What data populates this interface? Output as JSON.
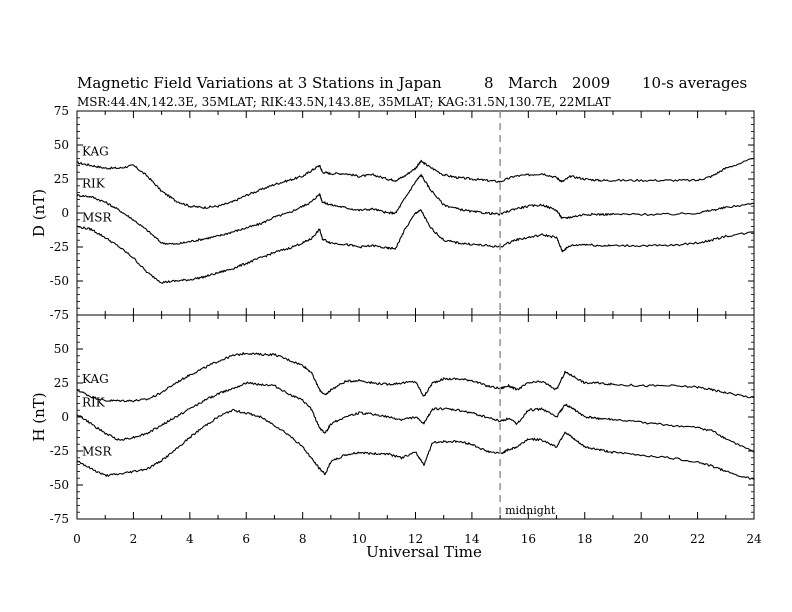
{
  "header": {
    "title": "Magnetic Field Variations at 3 Stations in Japan",
    "date_day": "8",
    "date_month": "March",
    "date_year": "2009",
    "averaging": "10-s averages",
    "stations_info": "MSR:44.4N,142.3E, 35MLAT;   RIK:43.5N,143.8E, 35MLAT;   KAG:31.5N,130.7E, 22MLAT"
  },
  "chart_data": [
    {
      "type": "line",
      "panel": "top",
      "ylabel": "D (nT)",
      "xlabel": "",
      "ylim": [
        -75,
        75
      ],
      "yticks": [
        75,
        50,
        25,
        0,
        -25,
        -50,
        -75
      ],
      "xlim": [
        0,
        24
      ],
      "series": [
        {
          "name": "KAG",
          "x": [
            0,
            0.5,
            1,
            1.5,
            2,
            2.5,
            3,
            3.5,
            4,
            4.5,
            5,
            5.5,
            6,
            6.5,
            7,
            7.5,
            8,
            8.3,
            8.6,
            8.7,
            9,
            9.5,
            10,
            10.5,
            11,
            11.3,
            11.6,
            12,
            12.2,
            12.5,
            13,
            13.5,
            14,
            14.5,
            15,
            15.5,
            16,
            16.5,
            17,
            17.2,
            17.5,
            18,
            18.5,
            19,
            20,
            21,
            22,
            22.5,
            23,
            24
          ],
          "y": [
            37,
            35,
            33,
            33,
            35,
            27,
            16,
            9,
            5,
            4,
            5,
            8,
            13,
            17,
            21,
            24,
            27,
            31,
            35,
            30,
            29,
            29,
            27,
            28,
            25,
            24,
            27,
            33,
            38,
            34,
            28,
            26,
            25,
            24,
            23,
            27,
            28,
            29,
            26,
            23,
            27,
            25,
            24,
            24,
            24,
            24,
            24,
            27,
            33,
            40
          ]
        },
        {
          "name": "RIK",
          "x": [
            0,
            0.5,
            1,
            1.5,
            2,
            2.5,
            3,
            3.5,
            4,
            4.5,
            5,
            5.5,
            6,
            6.5,
            7,
            7.5,
            8,
            8.3,
            8.6,
            8.7,
            9,
            9.5,
            10,
            10.5,
            11,
            11.3,
            11.6,
            12,
            12.2,
            12.5,
            13,
            13.5,
            14,
            14.5,
            15,
            15.5,
            16,
            16.5,
            17,
            17.2,
            17.5,
            18,
            18.5,
            19,
            20,
            21,
            22,
            22.5,
            23,
            24
          ],
          "y": [
            13,
            12,
            8,
            2,
            -5,
            -13,
            -22,
            -23,
            -21,
            -19,
            -17,
            -14,
            -11,
            -8,
            -3,
            0,
            5,
            8,
            14,
            8,
            6,
            4,
            2,
            3,
            0,
            0,
            10,
            23,
            28,
            18,
            6,
            3,
            1,
            0,
            -1,
            3,
            5,
            6,
            2,
            -4,
            -3,
            -1,
            -1,
            -1,
            -1,
            -1,
            0,
            2,
            4,
            7
          ]
        },
        {
          "name": "MSR",
          "x": [
            0,
            0.5,
            1,
            1.5,
            2,
            2.5,
            3,
            3.5,
            4,
            4.5,
            5,
            5.5,
            6,
            6.5,
            7,
            7.5,
            8,
            8.3,
            8.6,
            8.7,
            9,
            9.5,
            10,
            10.5,
            11,
            11.3,
            11.6,
            12,
            12.2,
            12.5,
            13,
            13.5,
            14,
            14.5,
            15,
            15.5,
            16,
            16.5,
            17,
            17.2,
            17.5,
            18,
            18.5,
            19,
            20,
            21,
            22,
            22.5,
            23,
            24
          ],
          "y": [
            -10,
            -12,
            -18,
            -25,
            -33,
            -44,
            -51,
            -50,
            -49,
            -47,
            -44,
            -41,
            -37,
            -33,
            -29,
            -26,
            -22,
            -19,
            -12,
            -19,
            -22,
            -23,
            -25,
            -24,
            -26,
            -26,
            -13,
            0,
            2,
            -10,
            -20,
            -22,
            -23,
            -24,
            -25,
            -20,
            -18,
            -16,
            -18,
            -28,
            -24,
            -23,
            -24,
            -24,
            -24,
            -24,
            -22,
            -20,
            -17,
            -14
          ]
        }
      ]
    },
    {
      "type": "line",
      "panel": "bottom",
      "ylabel": "H (nT)",
      "xlabel": "Universal Time",
      "ylim": [
        -75,
        75
      ],
      "yticks": [
        50,
        25,
        0,
        -25,
        -50,
        -75
      ],
      "xlim": [
        0,
        24
      ],
      "xticks": [
        0,
        2,
        4,
        6,
        8,
        10,
        12,
        14,
        16,
        18,
        20,
        22,
        24
      ],
      "series": [
        {
          "name": "KAG",
          "x": [
            0,
            0.5,
            1,
            1.5,
            2,
            2.5,
            3,
            3.5,
            4,
            4.5,
            5,
            5.5,
            6,
            6.5,
            7,
            7.5,
            8,
            8.3,
            8.6,
            8.8,
            9,
            9.5,
            10,
            10.5,
            11,
            11.5,
            12,
            12.3,
            12.6,
            13,
            13.5,
            14,
            14.5,
            15,
            15.3,
            15.6,
            16,
            16.5,
            17,
            17.3,
            17.6,
            18,
            18.5,
            19,
            20,
            21,
            22,
            22.5,
            23,
            24
          ],
          "y": [
            20,
            15,
            12,
            12,
            12,
            13,
            18,
            25,
            31,
            36,
            41,
            45,
            47,
            46,
            46,
            42,
            38,
            33,
            20,
            16,
            20,
            26,
            27,
            25,
            24,
            25,
            26,
            15,
            25,
            28,
            28,
            27,
            23,
            21,
            23,
            20,
            25,
            26,
            20,
            33,
            30,
            25,
            25,
            24,
            23,
            23,
            22,
            20,
            18,
            14
          ]
        },
        {
          "name": "RIK",
          "x": [
            0,
            0.5,
            1,
            1.5,
            2,
            2.5,
            3,
            3.5,
            4,
            4.5,
            5,
            5.5,
            6,
            6.5,
            7,
            7.5,
            8,
            8.3,
            8.6,
            8.8,
            9,
            9.5,
            10,
            10.5,
            11,
            11.5,
            12,
            12.3,
            12.6,
            13,
            13.5,
            14,
            14.5,
            15,
            15.3,
            15.6,
            16,
            16.5,
            17,
            17.3,
            17.6,
            18,
            18.5,
            19,
            20,
            21,
            22,
            22.5,
            23,
            24
          ],
          "y": [
            2,
            -5,
            -12,
            -17,
            -15,
            -12,
            -6,
            0,
            6,
            12,
            17,
            21,
            25,
            24,
            23,
            17,
            12,
            6,
            -8,
            -12,
            -5,
            0,
            3,
            2,
            0,
            -2,
            0,
            -5,
            6,
            6,
            5,
            3,
            0,
            -3,
            -1,
            -5,
            5,
            6,
            0,
            9,
            6,
            0,
            -1,
            -2,
            -4,
            -6,
            -8,
            -10,
            -16,
            -26
          ]
        },
        {
          "name": "MSR",
          "x": [
            0,
            0.5,
            1,
            1.5,
            2,
            2.5,
            3,
            3.5,
            4,
            4.5,
            5,
            5.5,
            6,
            6.5,
            7,
            7.5,
            8,
            8.3,
            8.6,
            8.8,
            9,
            9.5,
            10,
            10.5,
            11,
            11.5,
            12,
            12.3,
            12.6,
            13,
            13.5,
            14,
            14.5,
            15,
            15.3,
            15.6,
            16,
            16.5,
            17,
            17.3,
            17.6,
            18,
            18.5,
            19,
            20,
            21,
            22,
            22.5,
            23,
            24
          ],
          "y": [
            -32,
            -38,
            -43,
            -42,
            -40,
            -38,
            -32,
            -24,
            -15,
            -7,
            0,
            5,
            3,
            0,
            -6,
            -13,
            -22,
            -30,
            -38,
            -42,
            -33,
            -28,
            -26,
            -27,
            -27,
            -30,
            -26,
            -35,
            -19,
            -18,
            -18,
            -20,
            -25,
            -27,
            -24,
            -22,
            -16,
            -17,
            -22,
            -11,
            -16,
            -22,
            -24,
            -26,
            -28,
            -30,
            -33,
            -36,
            -40,
            -46
          ]
        }
      ]
    }
  ],
  "annotations": {
    "midnight_label": "midnight",
    "midnight_x": 15
  }
}
